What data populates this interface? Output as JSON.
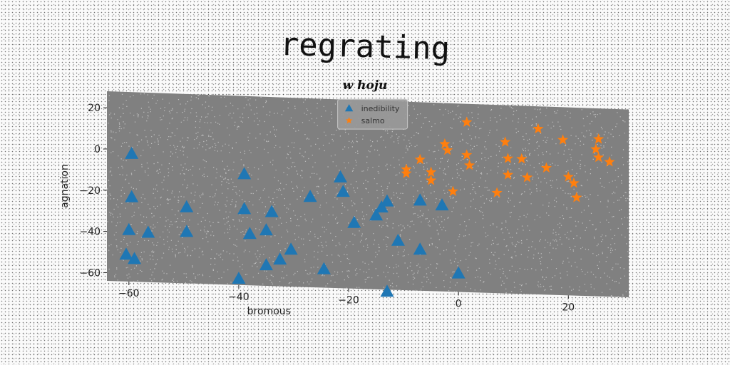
{
  "title": "regrating",
  "subtitle": "w hoju",
  "colors": {
    "inedibility": "#1f77b4",
    "salmo": "#ff7f0e",
    "plot_background": "#808080"
  },
  "chart_data": {
    "type": "scatter",
    "title": "regrating",
    "subtitle": "w hoju",
    "xlabel": "bromous",
    "ylabel": "agnation",
    "xlim": [
      -64,
      31
    ],
    "ylim": [
      -64,
      28
    ],
    "xticks": [
      -60,
      -40,
      -20,
      0,
      20
    ],
    "yticks": [
      20,
      0,
      -20,
      -40,
      -60
    ],
    "legend_position": "upper center",
    "grid": false,
    "series": [
      {
        "name": "inedibility",
        "marker": "triangle",
        "color": "#1f77b4",
        "points": [
          [
            -59.5,
            -2
          ],
          [
            -59.5,
            -23
          ],
          [
            -60,
            -39
          ],
          [
            -56.5,
            -40
          ],
          [
            -60.5,
            -51
          ],
          [
            -59,
            -53
          ],
          [
            -49.5,
            -27
          ],
          [
            -49.5,
            -39
          ],
          [
            -39,
            -10
          ],
          [
            -39,
            -27
          ],
          [
            -38,
            -39
          ],
          [
            -35,
            -37
          ],
          [
            -34,
            -28
          ],
          [
            -35,
            -54
          ],
          [
            -32.5,
            -51
          ],
          [
            -30.5,
            -46
          ],
          [
            -40,
            -61
          ],
          [
            -27,
            -20
          ],
          [
            -24.5,
            -55
          ],
          [
            -21.5,
            -10
          ],
          [
            -21,
            -17
          ],
          [
            -19,
            -32
          ],
          [
            -15,
            -28
          ],
          [
            -14,
            -24
          ],
          [
            -13,
            -21
          ],
          [
            -11,
            -40
          ],
          [
            -13,
            -65
          ],
          [
            -7,
            -20
          ],
          [
            -7,
            -44
          ],
          [
            -3,
            -22
          ],
          [
            0,
            -55
          ]
        ]
      },
      {
        "name": "salmo",
        "marker": "star",
        "color": "#ff7f0e",
        "points": [
          [
            1.5,
            19
          ],
          [
            -2.5,
            8
          ],
          [
            -2,
            5
          ],
          [
            -7,
            0
          ],
          [
            -9.5,
            -5
          ],
          [
            -9.5,
            -7
          ],
          [
            -5,
            -6
          ],
          [
            -5,
            -10
          ],
          [
            -1,
            -15
          ],
          [
            1.5,
            3
          ],
          [
            2,
            -2
          ],
          [
            7,
            -15
          ],
          [
            8.5,
            10
          ],
          [
            9,
            2
          ],
          [
            11.5,
            2
          ],
          [
            9,
            -6
          ],
          [
            12.5,
            -7
          ],
          [
            14.5,
            17
          ],
          [
            16,
            -2
          ],
          [
            19,
            12
          ],
          [
            20,
            -6
          ],
          [
            21,
            -9
          ],
          [
            21.5,
            -16
          ],
          [
            25,
            8
          ],
          [
            25.5,
            13
          ],
          [
            25.5,
            4
          ],
          [
            27.5,
            2
          ]
        ]
      }
    ]
  }
}
